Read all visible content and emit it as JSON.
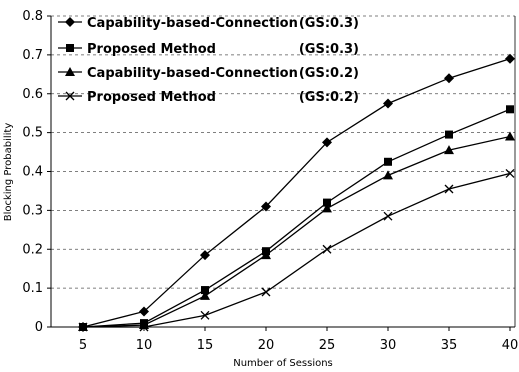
{
  "chart_data": {
    "type": "line",
    "title": "",
    "xlabel": "Number of Sessions",
    "ylabel": "Blocking Probability",
    "x": [
      5,
      10,
      15,
      20,
      25,
      30,
      35,
      40
    ],
    "x_tick_labels": [
      "5",
      "10",
      "15",
      "20",
      "25",
      "30",
      "35",
      "40"
    ],
    "y_tick_labels": [
      "0",
      "0.1",
      "0.2",
      "0.3",
      "0.4",
      "0.5",
      "0.6",
      "0.7",
      "0.8"
    ],
    "ylim": [
      0,
      0.8
    ],
    "grid": "horizontal dashed",
    "legend_position": "top-left",
    "series": [
      {
        "name": "Capability-based-Connection",
        "gs_label": "(GS:0.3)",
        "marker": "diamond",
        "values": [
          0.0,
          0.04,
          0.185,
          0.31,
          0.475,
          0.575,
          0.64,
          0.69
        ]
      },
      {
        "name": "Proposed Method",
        "gs_label": "(GS:0.3)",
        "marker": "square",
        "values": [
          0.0,
          0.01,
          0.095,
          0.195,
          0.32,
          0.425,
          0.495,
          0.56
        ]
      },
      {
        "name": "Capability-based-Connection",
        "gs_label": "(GS:0.2)",
        "marker": "triangle",
        "values": [
          0.0,
          0.005,
          0.08,
          0.185,
          0.305,
          0.39,
          0.455,
          0.49
        ]
      },
      {
        "name": "Proposed Method",
        "gs_label": "(GS:0.2)",
        "marker": "x",
        "values": [
          0.0,
          0.0,
          0.03,
          0.09,
          0.2,
          0.285,
          0.355,
          0.395
        ]
      }
    ]
  }
}
